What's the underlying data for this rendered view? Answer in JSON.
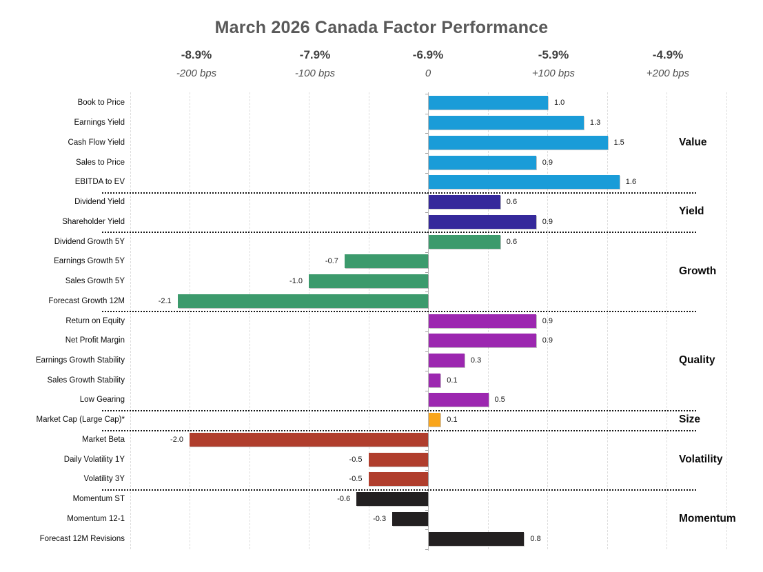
{
  "title": "March 2026 Canada Factor Performance",
  "chart_data": {
    "type": "bar",
    "orientation": "horizontal",
    "title": "March 2026 Canada Factor Performance",
    "unit": "factor return, 1.0 bar unit = 100 bps",
    "x_axis": {
      "pct_labels": [
        "-8.9%",
        "-7.9%",
        "-6.9%",
        "-5.9%",
        "-4.9%"
      ],
      "bps_labels": [
        "-200 bps",
        "-100 bps",
        "0",
        "+100 bps",
        "+200 bps"
      ],
      "tick_values_bps": [
        -200,
        -100,
        0,
        100,
        200
      ],
      "xlim_bps": [
        -250,
        250
      ],
      "gridline_step_bps": 50,
      "grid": true,
      "legend_position": "none"
    },
    "groups": [
      {
        "name": "Value",
        "color": "#1A9CD8",
        "items": [
          {
            "label": "Book to Price",
            "value": 1.0,
            "display": "1.0"
          },
          {
            "label": "Earnings Yield",
            "value": 1.3,
            "display": "1.3"
          },
          {
            "label": "Cash Flow Yield",
            "value": 1.5,
            "display": "1.5"
          },
          {
            "label": "Sales to Price",
            "value": 0.9,
            "display": "0.9"
          },
          {
            "label": "EBITDA to EV",
            "value": 1.6,
            "display": "1.6"
          }
        ]
      },
      {
        "name": "Yield",
        "color": "#35299B",
        "items": [
          {
            "label": "Dividend Yield",
            "value": 0.6,
            "display": "0.6"
          },
          {
            "label": "Shareholder Yield",
            "value": 0.9,
            "display": "0.9"
          }
        ]
      },
      {
        "name": "Growth",
        "color": "#3C9A6C",
        "items": [
          {
            "label": "Dividend Growth 5Y",
            "value": 0.6,
            "display": "0.6"
          },
          {
            "label": "Earnings Growth 5Y",
            "value": -0.7,
            "display": "-0.7"
          },
          {
            "label": "Sales Growth 5Y",
            "value": -1.0,
            "display": "-1.0"
          },
          {
            "label": "Forecast Growth 12M",
            "value": -2.1,
            "display": "-2.1"
          }
        ]
      },
      {
        "name": "Quality",
        "color": "#9C27B0",
        "items": [
          {
            "label": "Return on Equity",
            "value": 0.9,
            "display": "0.9"
          },
          {
            "label": "Net Profit Margin",
            "value": 0.9,
            "display": "0.9"
          },
          {
            "label": "Earnings Growth Stability",
            "value": 0.3,
            "display": "0.3"
          },
          {
            "label": "Sales Growth Stability",
            "value": 0.1,
            "display": "0.1"
          },
          {
            "label": "Low Gearing",
            "value": 0.5,
            "display": "0.5"
          }
        ]
      },
      {
        "name": "Size",
        "color": "#F9A51B",
        "items": [
          {
            "label": "Market Cap (Large Cap)*",
            "value": 0.1,
            "display": "0.1"
          }
        ]
      },
      {
        "name": "Volatility",
        "color": "#B03E2D",
        "items": [
          {
            "label": "Market Beta",
            "value": -2.0,
            "display": "-2.0"
          },
          {
            "label": "Daily Volatility 1Y",
            "value": -0.5,
            "display": "-0.5"
          },
          {
            "label": "Volatility 3Y",
            "value": -0.5,
            "display": "-0.5"
          }
        ]
      },
      {
        "name": "Momentum",
        "color": "#232021",
        "items": [
          {
            "label": "Momentum ST",
            "value": -0.6,
            "display": "-0.6"
          },
          {
            "label": "Momentum 12-1",
            "value": -0.3,
            "display": "-0.3"
          },
          {
            "label": "Forecast 12M Revisions",
            "value": 0.8,
            "display": "0.8"
          }
        ]
      }
    ]
  }
}
